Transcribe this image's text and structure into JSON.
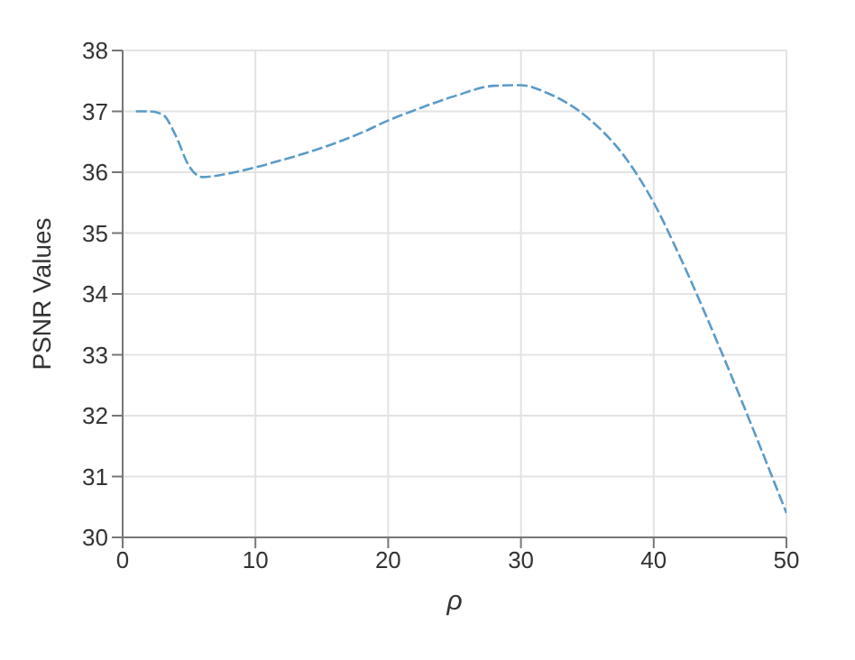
{
  "chart_data": {
    "type": "line",
    "xlabel": "ρ",
    "ylabel": "PSNR Values",
    "x": [
      1,
      2,
      3,
      4,
      5,
      6,
      8,
      10,
      12,
      15,
      18,
      20,
      22,
      25,
      28,
      30,
      32,
      35,
      38,
      40,
      42,
      45,
      48,
      50
    ],
    "series": [
      {
        "color": "#5a9bc8",
        "values": [
          37.0,
          37.0,
          36.95,
          36.6,
          36.1,
          35.92,
          35.98,
          36.08,
          36.2,
          36.4,
          36.65,
          36.85,
          37.02,
          37.25,
          37.42,
          37.43,
          37.3,
          36.9,
          36.2,
          35.5,
          34.6,
          33.1,
          31.5,
          30.4
        ]
      }
    ],
    "xlim": [
      0,
      50
    ],
    "xticks": [
      0,
      10,
      20,
      30,
      40,
      50
    ],
    "ylim": [
      30,
      38
    ],
    "yticks": [
      30,
      31,
      32,
      33,
      34,
      35,
      36,
      37,
      38
    ],
    "grid": true,
    "line_style": "dashed",
    "marker": "none"
  }
}
